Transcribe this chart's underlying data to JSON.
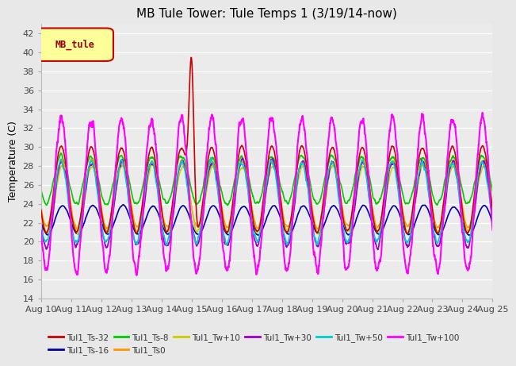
{
  "title": "MB Tule Tower: Tule Temps 1 (3/19/14-now)",
  "ylabel": "Temperature (C)",
  "ylim": [
    14,
    43
  ],
  "yticks": [
    14,
    16,
    18,
    20,
    22,
    24,
    26,
    28,
    30,
    32,
    34,
    36,
    38,
    40,
    42
  ],
  "xlabel_dates": [
    "Aug 10",
    "Aug 11",
    "Aug 12",
    "Aug 13",
    "Aug 14",
    "Aug 15",
    "Aug 16",
    "Aug 17",
    "Aug 18",
    "Aug 19",
    "Aug 20",
    "Aug 21",
    "Aug 22",
    "Aug 23",
    "Aug 24",
    "Aug 25"
  ],
  "n_days": 15,
  "series": [
    {
      "label": "Tul1_Ts-32",
      "color": "#cc0000",
      "lw": 1.2
    },
    {
      "label": "Tul1_Ts-16",
      "color": "#0000aa",
      "lw": 1.2
    },
    {
      "label": "Tul1_Ts-8",
      "color": "#00cc00",
      "lw": 1.2
    },
    {
      "label": "Tul1_Ts0",
      "color": "#ff9900",
      "lw": 1.2
    },
    {
      "label": "Tul1_Tw+10",
      "color": "#cccc00",
      "lw": 1.2
    },
    {
      "label": "Tul1_Tw+30",
      "color": "#9900cc",
      "lw": 1.2
    },
    {
      "label": "Tul1_Tw+50",
      "color": "#00cccc",
      "lw": 1.2
    },
    {
      "label": "Tul1_Tw+100",
      "color": "#ff00ff",
      "lw": 1.5
    }
  ],
  "background_color": "#e8e8e8",
  "plot_bg_color": "#ebebeb",
  "grid_color": "#ffffff",
  "title_fontsize": 11,
  "label_fontsize": 9,
  "tick_fontsize": 8,
  "legend_box_color": "#ffff99",
  "legend_box_text": "MB_tule",
  "legend_box_border": "#cc0000"
}
